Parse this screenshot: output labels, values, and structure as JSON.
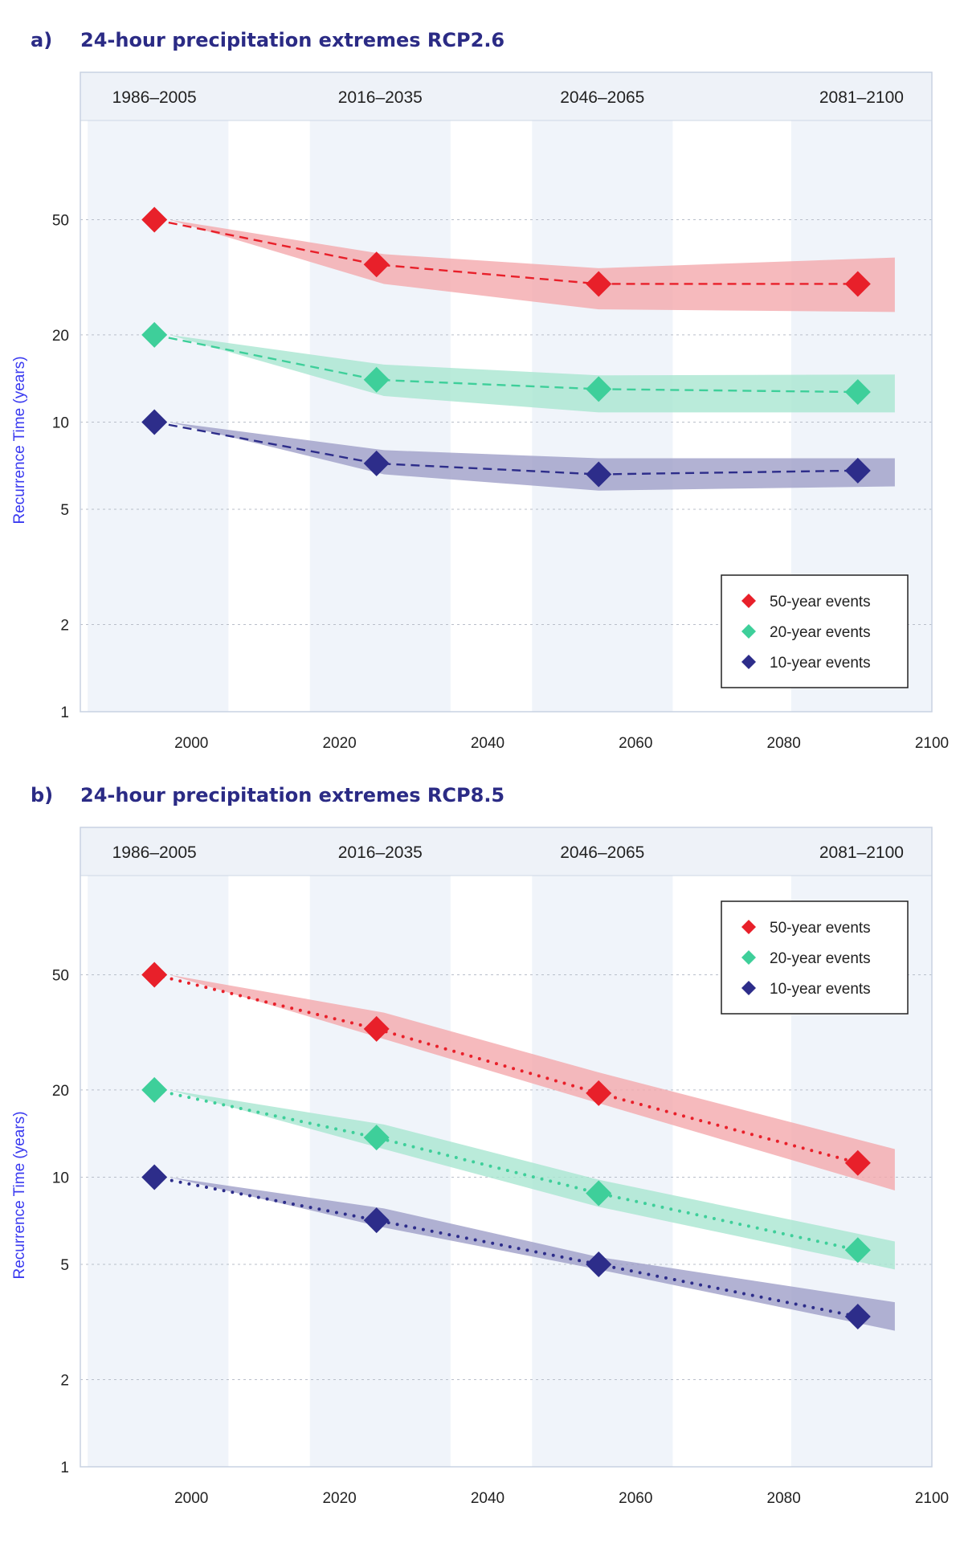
{
  "colors": {
    "red": "#e8202a",
    "red_band": "#f4a6aa",
    "green": "#3ecf9a",
    "green_band": "#a6e6cf",
    "navy": "#2d2d8a",
    "navy_band": "#9c9cc6",
    "shade": "#f0f4fa",
    "header": "#eef2f8",
    "axis_title": "#3a3af0",
    "title": "#2b2b85"
  },
  "chart_data": [
    {
      "type": "line",
      "panel_label": "a)",
      "title": "24-hour precipitation extremes RCP2.6",
      "ylabel": "Recurrence Time (years)",
      "xlabel": "",
      "y_scale": "log",
      "ylim": [
        1,
        110
      ],
      "xlim": [
        1985,
        2100
      ],
      "x_ticks": [
        2000,
        2020,
        2040,
        2060,
        2080,
        2100
      ],
      "y_ticks": [
        1,
        2,
        5,
        10,
        20,
        50
      ],
      "periods": [
        {
          "label": "1986–2005",
          "start": 1986,
          "end": 2005
        },
        {
          "label": "2016–2035",
          "start": 2016,
          "end": 2035
        },
        {
          "label": "2046–2065",
          "start": 2046,
          "end": 2065
        },
        {
          "label": "2081–2100",
          "start": 2081,
          "end": 2100
        }
      ],
      "line_style": "dashed",
      "legend_position": "lower-right",
      "grid": true,
      "series": [
        {
          "name": "50-year events",
          "color": "red",
          "x": [
            1995,
            2025,
            2055,
            2090
          ],
          "values": [
            50,
            35,
            30,
            30
          ],
          "band_x": [
            1997,
            2026,
            2055,
            2095
          ],
          "band_low": [
            50,
            30,
            24.5,
            24
          ],
          "band_high": [
            50,
            38,
            34,
            37
          ]
        },
        {
          "name": "20-year events",
          "color": "green",
          "x": [
            1995,
            2025,
            2055,
            2090
          ],
          "values": [
            20,
            14,
            13,
            12.7
          ],
          "band_x": [
            1997,
            2026,
            2055,
            2095
          ],
          "band_low": [
            20,
            12.3,
            10.8,
            10.8
          ],
          "band_high": [
            20,
            15.8,
            14.5,
            14.6
          ]
        },
        {
          "name": "10-year events",
          "color": "navy",
          "x": [
            1995,
            2025,
            2055,
            2090
          ],
          "values": [
            10,
            7.2,
            6.6,
            6.8
          ],
          "band_x": [
            1997,
            2026,
            2055,
            2095
          ],
          "band_low": [
            10,
            6.6,
            5.8,
            6.0
          ],
          "band_high": [
            10,
            8.0,
            7.5,
            7.5
          ]
        }
      ]
    },
    {
      "type": "line",
      "panel_label": "b)",
      "title": "24-hour precipitation extremes RCP8.5",
      "ylabel": "Recurrence Time (years)",
      "xlabel": "",
      "y_scale": "log",
      "ylim": [
        1,
        110
      ],
      "xlim": [
        1985,
        2100
      ],
      "x_ticks": [
        2000,
        2020,
        2040,
        2060,
        2080,
        2100
      ],
      "y_ticks": [
        1,
        2,
        5,
        10,
        20,
        50
      ],
      "periods": [
        {
          "label": "1986–2005",
          "start": 1986,
          "end": 2005
        },
        {
          "label": "2016–2035",
          "start": 2016,
          "end": 2035
        },
        {
          "label": "2046–2065",
          "start": 2046,
          "end": 2065
        },
        {
          "label": "2081–2100",
          "start": 2081,
          "end": 2100
        }
      ],
      "line_style": "dotted",
      "legend_position": "top-right",
      "grid": true,
      "series": [
        {
          "name": "50-year events",
          "color": "red",
          "x": [
            1995,
            2025,
            2055,
            2090
          ],
          "values": [
            50,
            32.5,
            19.5,
            11.2
          ],
          "band_x": [
            1997,
            2026,
            2055,
            2095
          ],
          "band_low": [
            50,
            30,
            18,
            9
          ],
          "band_high": [
            50,
            37,
            23,
            12.5
          ]
        },
        {
          "name": "20-year events",
          "color": "green",
          "x": [
            1995,
            2025,
            2055,
            2090
          ],
          "values": [
            20,
            13.7,
            8.8,
            5.6
          ],
          "band_x": [
            1997,
            2026,
            2055,
            2095
          ],
          "band_low": [
            20,
            12.5,
            7.9,
            4.8
          ],
          "band_high": [
            20,
            15.2,
            9.8,
            6.0
          ]
        },
        {
          "name": "10-year events",
          "color": "navy",
          "x": [
            1995,
            2025,
            2055,
            2090
          ],
          "values": [
            10,
            7.1,
            5.0,
            3.3
          ],
          "band_x": [
            1997,
            2026,
            2055,
            2095
          ],
          "band_low": [
            10,
            6.7,
            4.8,
            2.95
          ],
          "band_high": [
            10,
            7.8,
            5.3,
            3.7
          ]
        }
      ]
    }
  ]
}
